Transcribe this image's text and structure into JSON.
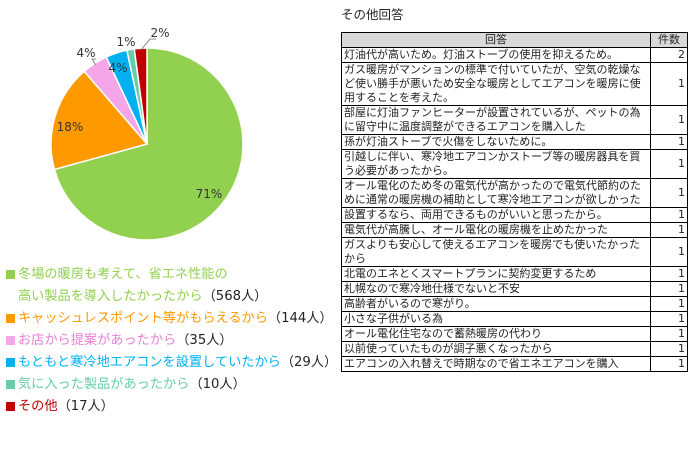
{
  "chart_data": {
    "type": "pie",
    "title": "",
    "slices": [
      {
        "label": "冬場の暖房も考えて、省エネ性能の高い製品を導入したかったから",
        "line1": "冬場の暖房も考えて、省エネ性能の",
        "line2": "高い製品を導入したかったから",
        "count": "（568人）",
        "value": 568,
        "percent_label": "71%",
        "color": "#92d050"
      },
      {
        "label": "キャッシュレスポイント等がもらえるから",
        "count": "（144人）",
        "value": 144,
        "percent_label": "18%",
        "color": "#ff9900"
      },
      {
        "label": "お店から提案があったから",
        "count": "（35人）",
        "value": 35,
        "percent_label": "4%",
        "color": "#f4a6e8"
      },
      {
        "label": "もともと寒冷地エアコンを設置していたから",
        "count": "（29人）",
        "value": 29,
        "percent_label": "4%",
        "color": "#00b0f0"
      },
      {
        "label": "気に入った製品があったから",
        "count": "（10人）",
        "value": 10,
        "percent_label": "1%",
        "color": "#66ccaa"
      },
      {
        "label": "その他",
        "count": "（17人）",
        "value": 17,
        "percent_label": "2%",
        "color": "#c00000"
      }
    ]
  },
  "other_answers": {
    "title": "その他回答",
    "headers": [
      "回答",
      "件数"
    ],
    "rows": [
      {
        "text": "灯油代が高いため。灯油ストーブの使用を抑えるため。",
        "count": "2"
      },
      {
        "text": "ガス暖房がマンションの標準で付いていたが、空気の乾燥など使い勝手が悪いため安全な暖房としてエアコンを暖房に使用することを考えた。",
        "count": "1"
      },
      {
        "text": "部屋に灯油ファンヒーターが設置されているが、ペットの為に留守中に温度調整ができるエアコンを購入した",
        "count": "1"
      },
      {
        "text": "孫が灯油ストーブで火傷をしないために。",
        "count": "1"
      },
      {
        "text": "引越しに伴い、寒冷地エアコンかストーブ等の暖房器具を買う必要があったから。",
        "count": "1"
      },
      {
        "text": "オール電化のため冬の電気代が高かったので電気代節約のために通常の暖房機の補助として寒冷地エアコンが欲しかった",
        "count": "1"
      },
      {
        "text": "設置するなら、両用できるものがいいと思ったから。",
        "count": "1"
      },
      {
        "text": "電気代が高騰し、オール電化の暖房機を止めたかった",
        "count": "1"
      },
      {
        "text": "ガスよりも安心して使えるエアコンを暖房でも使いたかったから",
        "count": "1"
      },
      {
        "text": "北電のエネとくスマートプランに契約変更するため",
        "count": "1"
      },
      {
        "text": "札幌なので寒冷地仕様でないと不安",
        "count": "1"
      },
      {
        "text": "高齢者がいるので寒がり。",
        "count": "1"
      },
      {
        "text": "小さな子供がいる為",
        "count": "1"
      },
      {
        "text": "オール電化住宅なので蓄熱暖房の代わり",
        "count": "1"
      },
      {
        "text": "以前使っていたものが調子悪くなったから",
        "count": "1"
      },
      {
        "text": "エアコンの入れ替えで時期なので省エネエアコンを購入",
        "count": "1"
      }
    ]
  }
}
